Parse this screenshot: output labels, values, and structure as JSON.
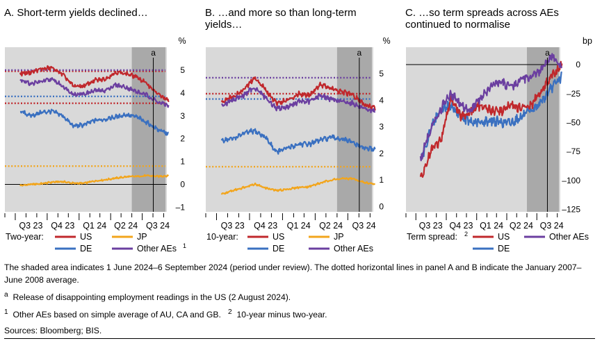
{
  "colors": {
    "US": "#c0282c",
    "DE": "#3a70c0",
    "JP": "#f2a51c",
    "Other AEs": "#6b3fa0",
    "plot_bg": "#d9d9d9",
    "shade": "#a9a9a9"
  },
  "chart_data": [
    {
      "type": "line",
      "title": "A. Short-term yields declined…",
      "unit": "%",
      "xlabel": "",
      "ylabel": "",
      "x_ticks": [
        "Q3 23",
        "Q4 23",
        "Q1 24",
        "Q2 24",
        "Q3 24"
      ],
      "y_ticks": [
        5,
        4,
        3,
        2,
        1,
        0,
        -1
      ],
      "y_tick_labels": [
        "5",
        "4",
        "3",
        "2",
        "1",
        "0",
        "–1"
      ],
      "ylim": [
        -1.2,
        6.0
      ],
      "shade": [
        "2024-06-01",
        "2024-09-06"
      ],
      "event_marker": {
        "label": "a",
        "date": "2024-08-02"
      },
      "reference_zero": true,
      "legend_title": "Two-year:",
      "legend": [
        "US",
        "JP",
        "DE",
        "Other AEs"
      ],
      "series": [
        {
          "name": "US",
          "x": [
            "2023-07",
            "2023-08",
            "2023-09",
            "2023-10",
            "2023-11",
            "2023-12",
            "2024-01",
            "2024-02",
            "2024-03",
            "2024-04",
            "2024-05",
            "2024-06",
            "2024-07",
            "2024-08",
            "2024-09"
          ],
          "values": [
            4.85,
            4.9,
            5.05,
            5.1,
            4.8,
            4.3,
            4.3,
            4.55,
            4.6,
            4.9,
            4.85,
            4.7,
            4.4,
            3.95,
            3.65
          ]
        },
        {
          "name": "DE",
          "x": [
            "2023-07",
            "2023-08",
            "2023-09",
            "2023-10",
            "2023-11",
            "2023-12",
            "2024-01",
            "2024-02",
            "2024-03",
            "2024-04",
            "2024-05",
            "2024-06",
            "2024-07",
            "2024-08",
            "2024-09"
          ],
          "values": [
            3.2,
            3.0,
            3.15,
            3.2,
            3.0,
            2.55,
            2.6,
            2.8,
            2.85,
            2.95,
            3.05,
            2.95,
            2.7,
            2.4,
            2.2
          ]
        },
        {
          "name": "JP",
          "x": [
            "2023-07",
            "2023-08",
            "2023-09",
            "2023-10",
            "2023-11",
            "2023-12",
            "2024-01",
            "2024-02",
            "2024-03",
            "2024-04",
            "2024-05",
            "2024-06",
            "2024-07",
            "2024-08",
            "2024-09"
          ],
          "values": [
            -0.05,
            0.0,
            0.03,
            0.1,
            0.12,
            0.05,
            0.05,
            0.15,
            0.2,
            0.27,
            0.33,
            0.35,
            0.38,
            0.35,
            0.38
          ]
        },
        {
          "name": "Other AEs",
          "x": [
            "2023-07",
            "2023-08",
            "2023-09",
            "2023-10",
            "2023-11",
            "2023-12",
            "2024-01",
            "2024-02",
            "2024-03",
            "2024-04",
            "2024-05",
            "2024-06",
            "2024-07",
            "2024-08",
            "2024-09"
          ],
          "values": [
            4.6,
            4.4,
            4.5,
            4.6,
            4.3,
            3.95,
            3.95,
            4.1,
            4.1,
            4.35,
            4.25,
            4.05,
            3.9,
            3.6,
            3.45
          ]
        }
      ],
      "reference_lines": [
        {
          "name": "US",
          "value": 4.95
        },
        {
          "name": "Other AEs",
          "value": 5.0
        },
        {
          "name": "DE",
          "value": 3.85
        },
        {
          "name": "US",
          "value": 3.55
        },
        {
          "name": "JP",
          "value": 0.8
        }
      ]
    },
    {
      "type": "line",
      "title": "B. …and more so than long-term yields…",
      "unit": "%",
      "xlabel": "",
      "ylabel": "",
      "x_ticks": [
        "Q3 23",
        "Q4 23",
        "Q1 24",
        "Q2 24",
        "Q3 24"
      ],
      "y_ticks": [
        5,
        4,
        3,
        2,
        1,
        0
      ],
      "y_tick_labels": [
        "5",
        "4",
        "3",
        "2",
        "1",
        "0"
      ],
      "ylim": [
        -0.2,
        6.0
      ],
      "shade": [
        "2024-06-01",
        "2024-09-06"
      ],
      "event_marker": {
        "label": "a",
        "date": "2024-08-02"
      },
      "legend_title": "10-year:",
      "legend": [
        "US",
        "JP",
        "DE",
        "Other AEs"
      ],
      "series": [
        {
          "name": "US",
          "x": [
            "2023-07",
            "2023-08",
            "2023-09",
            "2023-10",
            "2023-11",
            "2023-12",
            "2024-01",
            "2024-02",
            "2024-03",
            "2024-04",
            "2024-05",
            "2024-06",
            "2024-07",
            "2024-08",
            "2024-09"
          ],
          "values": [
            3.9,
            4.15,
            4.4,
            4.85,
            4.4,
            3.9,
            4.0,
            4.25,
            4.2,
            4.6,
            4.45,
            4.3,
            4.2,
            3.85,
            3.7
          ]
        },
        {
          "name": "DE",
          "x": [
            "2023-07",
            "2023-08",
            "2023-09",
            "2023-10",
            "2023-11",
            "2023-12",
            "2024-01",
            "2024-02",
            "2024-03",
            "2024-04",
            "2024-05",
            "2024-06",
            "2024-07",
            "2024-08",
            "2024-09"
          ],
          "values": [
            2.5,
            2.55,
            2.75,
            2.85,
            2.6,
            2.05,
            2.2,
            2.35,
            2.35,
            2.5,
            2.6,
            2.55,
            2.4,
            2.2,
            2.15
          ]
        },
        {
          "name": "JP",
          "x": [
            "2023-07",
            "2023-08",
            "2023-09",
            "2023-10",
            "2023-11",
            "2023-12",
            "2024-01",
            "2024-02",
            "2024-03",
            "2024-04",
            "2024-05",
            "2024-06",
            "2024-07",
            "2024-08",
            "2024-09"
          ],
          "values": [
            0.45,
            0.6,
            0.72,
            0.85,
            0.7,
            0.6,
            0.65,
            0.72,
            0.75,
            0.88,
            1.0,
            1.05,
            1.05,
            0.9,
            0.85
          ]
        },
        {
          "name": "Other AEs",
          "x": [
            "2023-07",
            "2023-08",
            "2023-09",
            "2023-10",
            "2023-11",
            "2023-12",
            "2024-01",
            "2024-02",
            "2024-03",
            "2024-04",
            "2024-05",
            "2024-06",
            "2024-07",
            "2024-08",
            "2024-09"
          ],
          "values": [
            3.8,
            4.0,
            4.2,
            4.5,
            4.1,
            3.7,
            3.75,
            3.95,
            3.95,
            4.2,
            4.05,
            3.95,
            3.9,
            3.65,
            3.6
          ]
        }
      ],
      "reference_lines": [
        {
          "name": "Other AEs",
          "value": 4.85
        },
        {
          "name": "US",
          "value": 4.25
        },
        {
          "name": "DE",
          "value": 4.05
        },
        {
          "name": "JP",
          "value": 1.5
        }
      ]
    },
    {
      "type": "line",
      "title": "C. …so term spreads across AEs continued to normalise",
      "unit": "bp",
      "xlabel": "",
      "ylabel": "",
      "x_ticks": [
        "Q3 23",
        "Q4 23",
        "Q1 24",
        "Q2 24",
        "Q3 24"
      ],
      "y_ticks": [
        0,
        -25,
        -50,
        -75,
        -100,
        -125
      ],
      "y_tick_labels": [
        "0",
        "–25",
        "–50",
        "–75",
        "–100",
        "–125"
      ],
      "ylim": [
        -127,
        15
      ],
      "shade": [
        "2024-06-01",
        "2024-09-06"
      ],
      "event_marker": {
        "label": "a",
        "date": "2024-08-02"
      },
      "reference_zero": true,
      "legend_title": "Term spread:",
      "legend": [
        "US",
        "Other AEs",
        "DE"
      ],
      "series": [
        {
          "name": "US",
          "x": [
            "2023-07",
            "2023-08",
            "2023-09",
            "2023-10",
            "2023-11",
            "2023-12",
            "2024-01",
            "2024-02",
            "2024-03",
            "2024-04",
            "2024-05",
            "2024-06",
            "2024-07",
            "2024-08",
            "2024-09"
          ],
          "values": [
            -100,
            -75,
            -65,
            -28,
            -45,
            -40,
            -35,
            -40,
            -40,
            -35,
            -38,
            -35,
            -22,
            -10,
            0
          ]
        },
        {
          "name": "DE",
          "x": [
            "2023-07",
            "2023-08",
            "2023-09",
            "2023-10",
            "2023-11",
            "2023-12",
            "2024-01",
            "2024-02",
            "2024-03",
            "2024-04",
            "2024-05",
            "2024-06",
            "2024-07",
            "2024-08",
            "2024-09"
          ],
          "values": [
            -85,
            -55,
            -38,
            -35,
            -45,
            -50,
            -50,
            -48,
            -50,
            -50,
            -45,
            -40,
            -32,
            -20,
            -10
          ]
        },
        {
          "name": "Other AEs",
          "x": [
            "2023-07",
            "2023-08",
            "2023-09",
            "2023-10",
            "2023-11",
            "2023-12",
            "2024-01",
            "2024-02",
            "2024-03",
            "2024-04",
            "2024-05",
            "2024-06",
            "2024-07",
            "2024-08",
            "2024-09"
          ],
          "values": [
            -82,
            -55,
            -38,
            -25,
            -35,
            -40,
            -28,
            -18,
            -15,
            -20,
            -12,
            -10,
            -5,
            8,
            -3
          ]
        }
      ]
    }
  ],
  "panels_legend": {
    "A": {
      "title": "Two-year:",
      "items": [
        "US",
        "JP",
        "DE",
        "Other AEs"
      ]
    },
    "B": {
      "title": "10-year:",
      "items": [
        "US",
        "JP",
        "DE",
        "Other AEs"
      ]
    },
    "C": {
      "title": "Term spread:",
      "items": [
        "US",
        "Other AEs",
        "DE"
      ]
    }
  },
  "legend_superscripts": {
    "other_aes": "1",
    "term_spread": "2"
  },
  "notes": {
    "shading": "The shaded area indicates 1 June 2024–6 September 2024 (period under review). The dotted horizontal lines in panel A and B indicate the January 2007–June 2008 average.",
    "footnote_a_mark": "a",
    "footnote_a": "Release of disappointing employment readings in the US (2 August 2024).",
    "footnote_1_mark": "1",
    "footnote_1": "Other AEs based on simple average of AU, CA and GB.",
    "footnote_2_mark": "2",
    "footnote_2": "10-year minus two-year.",
    "sources": "Sources: Bloomberg; BIS."
  }
}
